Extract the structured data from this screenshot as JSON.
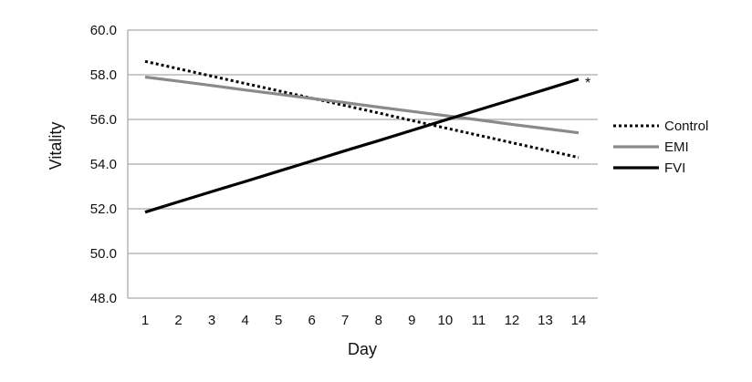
{
  "chart_data": {
    "type": "line",
    "title": "",
    "xlabel": "Day",
    "ylabel": "Vitality",
    "x": [
      1,
      2,
      3,
      4,
      5,
      6,
      7,
      8,
      9,
      10,
      11,
      12,
      13,
      14
    ],
    "xticks": [
      "1",
      "2",
      "3",
      "4",
      "5",
      "6",
      "7",
      "8",
      "9",
      "10",
      "11",
      "12",
      "13",
      "14"
    ],
    "ylim": [
      48.0,
      60.0
    ],
    "yticks": [
      "48.0",
      "50.0",
      "52.0",
      "54.0",
      "56.0",
      "58.0",
      "60.0"
    ],
    "grid": "horizontal",
    "legend": "right",
    "series": [
      {
        "name": "Control",
        "style": "dotted",
        "color": "#000000",
        "values": [
          58.6,
          58.27,
          57.94,
          57.61,
          57.28,
          56.95,
          56.62,
          56.29,
          55.95,
          55.62,
          55.29,
          54.96,
          54.63,
          54.3
        ]
      },
      {
        "name": "EMI",
        "style": "solid",
        "color": "#8a8a8a",
        "values": [
          57.9,
          57.71,
          57.52,
          57.32,
          57.13,
          56.94,
          56.75,
          56.55,
          56.36,
          56.17,
          55.98,
          55.78,
          55.59,
          55.4
        ]
      },
      {
        "name": "FVI",
        "style": "solid",
        "color": "#000000",
        "values": [
          51.85,
          52.31,
          52.77,
          53.22,
          53.68,
          54.14,
          54.6,
          55.05,
          55.51,
          55.97,
          56.43,
          56.88,
          57.34,
          57.8
        ]
      }
    ],
    "annotations": [
      {
        "text": "*",
        "x": 14,
        "y": 57.8
      }
    ]
  }
}
